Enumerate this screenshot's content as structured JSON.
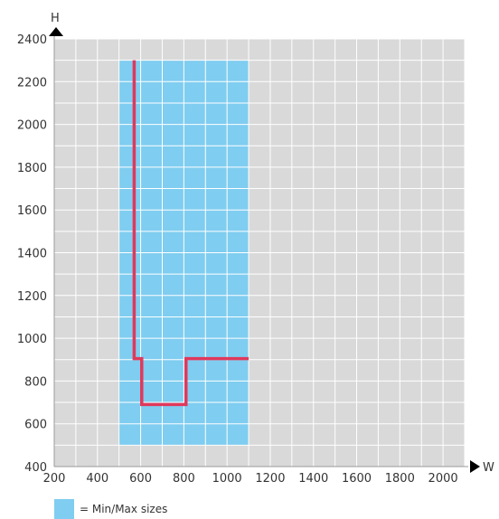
{
  "chart_data": {
    "type": "area",
    "x_axis": {
      "label": "W",
      "range": [
        200,
        2100
      ],
      "ticks": [
        200,
        400,
        600,
        800,
        1000,
        1200,
        1400,
        1600,
        1800,
        2000
      ],
      "minor_step": 100
    },
    "y_axis": {
      "label": "H",
      "range": [
        400,
        2400
      ],
      "ticks": [
        400,
        600,
        800,
        1000,
        1200,
        1400,
        1600,
        1800,
        2000,
        2200,
        2400
      ],
      "minor_step": 100
    },
    "grid": true,
    "region": {
      "name": "= Min/Max sizes",
      "x": [
        500,
        1100
      ],
      "y": [
        500,
        2300
      ],
      "color": "#7fcdf0"
    },
    "boundary_line": {
      "color": "#e0385b",
      "points": [
        [
          570,
          2300
        ],
        [
          570,
          905
        ],
        [
          605,
          905
        ],
        [
          605,
          690
        ],
        [
          810,
          690
        ],
        [
          810,
          905
        ],
        [
          1100,
          905
        ]
      ]
    },
    "plot_background": "#d9d9d9",
    "grid_color": "#ffffff"
  }
}
